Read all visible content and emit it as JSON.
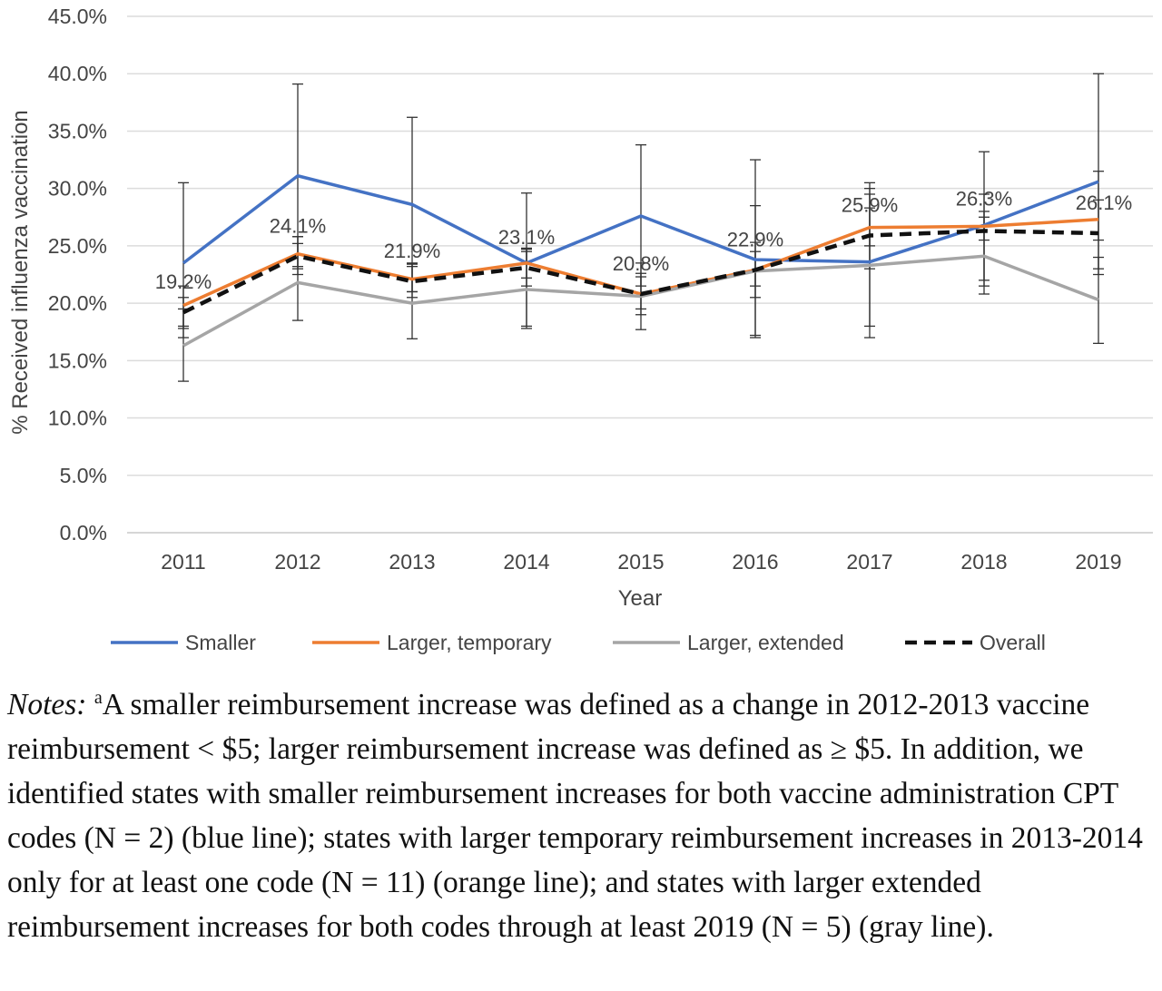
{
  "chart_data": {
    "type": "line",
    "xlabel": "Year",
    "ylabel": "% Received influenza vaccination",
    "categories": [
      "2011",
      "2012",
      "2013",
      "2014",
      "2015",
      "2016",
      "2017",
      "2018",
      "2019"
    ],
    "ylim": [
      0,
      45
    ],
    "y_ticks": [
      "0.0%",
      "5.0%",
      "10.0%",
      "15.0%",
      "20.0%",
      "25.0%",
      "30.0%",
      "35.0%",
      "40.0%",
      "45.0%"
    ],
    "grid": "horizontal",
    "legend_position": "bottom",
    "series": [
      {
        "name": "Smaller",
        "color": "#4472C4",
        "style": "solid",
        "values": [
          23.5,
          31.1,
          28.6,
          23.5,
          27.6,
          23.8,
          23.6,
          26.8,
          30.6
        ],
        "error_low": [
          17.0,
          23.2,
          21.0,
          17.8,
          21.5,
          17.0,
          17.0,
          21.5,
          23.0
        ],
        "error_high": [
          30.5,
          39.1,
          36.2,
          29.6,
          33.8,
          32.5,
          30.5,
          33.2,
          40.0
        ]
      },
      {
        "name": "Larger, temporary",
        "color": "#ED7D31",
        "style": "solid",
        "values": [
          19.8,
          24.3,
          22.1,
          23.5,
          20.8,
          22.9,
          26.6,
          26.7,
          27.3
        ],
        "error_low": [
          18.0,
          23.0,
          21.0,
          22.2,
          19.5,
          21.5,
          25.0,
          25.5,
          25.5
        ],
        "error_high": [
          21.5,
          25.8,
          23.5,
          24.8,
          22.3,
          24.5,
          28.3,
          28.0,
          29.0
        ]
      },
      {
        "name": "Larger, extended",
        "color": "#A5A5A5",
        "style": "solid",
        "values": [
          16.3,
          21.8,
          20.0,
          21.2,
          20.6,
          22.8,
          23.3,
          24.1,
          20.3
        ],
        "error_low": [
          13.2,
          18.5,
          16.9,
          18.0,
          17.7,
          17.2,
          18.0,
          20.8,
          16.5
        ],
        "error_high": [
          19.5,
          25.2,
          23.2,
          24.5,
          23.5,
          28.5,
          29.5,
          27.5,
          24.0
        ]
      },
      {
        "name": "Overall",
        "color": "#111111",
        "style": "dashed",
        "values": [
          19.2,
          24.1,
          21.9,
          23.1,
          20.8,
          22.9,
          25.9,
          26.3,
          26.1
        ],
        "error_low": [
          17.8,
          22.5,
          20.5,
          21.5,
          19.0,
          20.5,
          23.0,
          22.0,
          22.5
        ],
        "error_high": [
          20.5,
          25.8,
          23.4,
          24.7,
          22.6,
          25.3,
          30.0,
          29.5,
          31.5
        ]
      }
    ],
    "data_labels": [
      "19.2%",
      "24.1%",
      "21.9%",
      "23.1%",
      "20.8%",
      "22.9%",
      "25.9%",
      "26.3%",
      "26.1%"
    ]
  },
  "notes": {
    "lead": "Notes:",
    "superscript": "a",
    "text": "A smaller reimbursement increase was defined as a change in 2012-2013 vaccine reimbursement < $5; larger reimbursement increase was defined as ≥ $5. In addition, we identified states with smaller reimbursement increases for both vaccine administration CPT codes (N = 2) (blue line); states with larger temporary reimbursement increases in 2013-2014 only for at least one code (N = 11) (orange line); and states with larger extended reimbursement increases for both codes through at least 2019 (N = 5) (gray line)."
  }
}
